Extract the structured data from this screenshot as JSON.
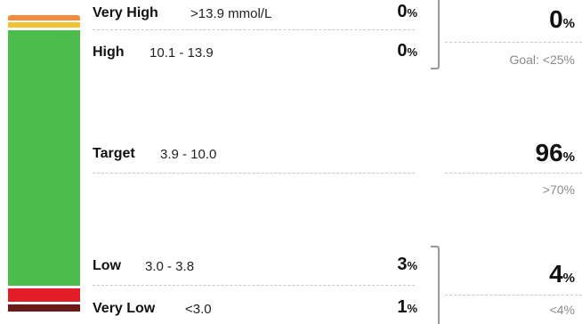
{
  "ranges": {
    "very_high": {
      "label": "Very High",
      "range": ">13.9 mmol/L",
      "value": "0",
      "unit": "%"
    },
    "high": {
      "label": "High",
      "range": "10.1 - 13.9",
      "value": "0",
      "unit": "%"
    },
    "target": {
      "label": "Target",
      "range": "3.9 - 10.0",
      "value": "96",
      "unit": "%"
    },
    "low": {
      "label": "Low",
      "range": "3.0 - 3.8",
      "value": "3",
      "unit": "%"
    },
    "very_low": {
      "label": "Very Low",
      "range": "<3.0",
      "value": "1",
      "unit": "%"
    }
  },
  "summaries": {
    "high_total": {
      "value": "0",
      "unit": "%",
      "goal": "Goal: <25%"
    },
    "target_total": {
      "value": "96",
      "unit": "%",
      "goal": ">70%"
    },
    "low_total": {
      "value": "4",
      "unit": "%",
      "goal": "<4%"
    }
  },
  "colors": {
    "very_high": "#f28c3c",
    "high": "#f2c330",
    "target": "#4cbc4c",
    "low": "#e21d27",
    "very_low": "#6b1a1a"
  }
}
